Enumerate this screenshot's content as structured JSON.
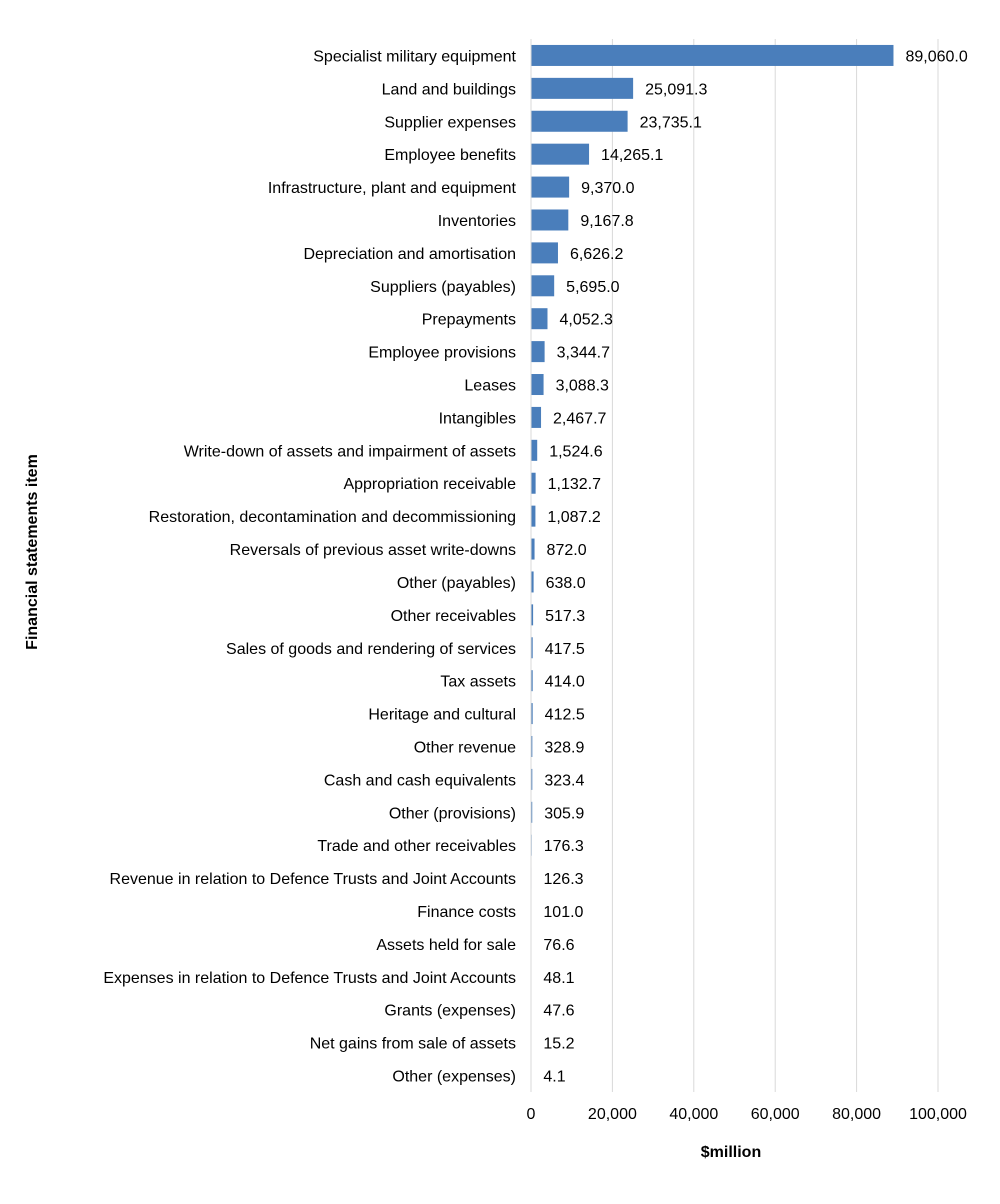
{
  "chart_data": {
    "type": "bar",
    "orientation": "horizontal",
    "xlabel": "$million",
    "ylabel": "Financial statements item",
    "xlim": [
      0,
      100000
    ],
    "xticks": [
      0,
      20000,
      40000,
      60000,
      80000,
      100000
    ],
    "xtick_labels": [
      "0",
      "20,000",
      "40,000",
      "60,000",
      "80,000",
      "100,000"
    ],
    "grid": "vertical",
    "legend": "none",
    "bar_color": "#4A7EBB",
    "categories": [
      "Specialist military equipment",
      "Land and buildings",
      "Supplier expenses",
      "Employee benefits",
      "Infrastructure, plant and equipment",
      "Inventories",
      "Depreciation and amortisation",
      "Suppliers (payables)",
      "Prepayments",
      "Employee provisions",
      "Leases",
      "Intangibles",
      "Write-down of assets and impairment of assets",
      "Appropriation receivable",
      "Restoration, decontamination and decommissioning",
      "Reversals of previous asset write-downs",
      "Other (payables)",
      "Other receivables",
      "Sales of goods and rendering of services",
      "Tax assets",
      "Heritage and cultural",
      "Other revenue",
      "Cash and cash equivalents",
      "Other (provisions)",
      "Trade and other receivables",
      "Revenue in relation to Defence Trusts and Joint Accounts",
      "Finance costs",
      "Assets held for sale",
      "Expenses in relation to Defence Trusts and Joint Accounts",
      "Grants (expenses)",
      "Net gains from sale of assets",
      "Other (expenses)"
    ],
    "values": [
      89060.0,
      25091.3,
      23735.1,
      14265.1,
      9370.0,
      9167.8,
      6626.2,
      5695.0,
      4052.3,
      3344.7,
      3088.3,
      2467.7,
      1524.6,
      1132.7,
      1087.2,
      872.0,
      638.0,
      517.3,
      417.5,
      414.0,
      412.5,
      328.9,
      323.4,
      305.9,
      176.3,
      126.3,
      101.0,
      76.6,
      48.1,
      47.6,
      15.2,
      4.1
    ],
    "data_labels": [
      "89,060.0",
      "25,091.3",
      "23,735.1",
      "14,265.1",
      "9,370.0",
      "9,167.8",
      "6,626.2",
      "5,695.0",
      "4,052.3",
      "3,344.7",
      "3,088.3",
      "2,467.7",
      "1,524.6",
      "1,132.7",
      "1,087.2",
      "872.0",
      "638.0",
      "517.3",
      "417.5",
      "414.0",
      "412.5",
      "328.9",
      "323.4",
      "305.9",
      "176.3",
      "126.3",
      "101.0",
      "76.6",
      "48.1",
      "47.6",
      "15.2",
      "4.1"
    ]
  }
}
